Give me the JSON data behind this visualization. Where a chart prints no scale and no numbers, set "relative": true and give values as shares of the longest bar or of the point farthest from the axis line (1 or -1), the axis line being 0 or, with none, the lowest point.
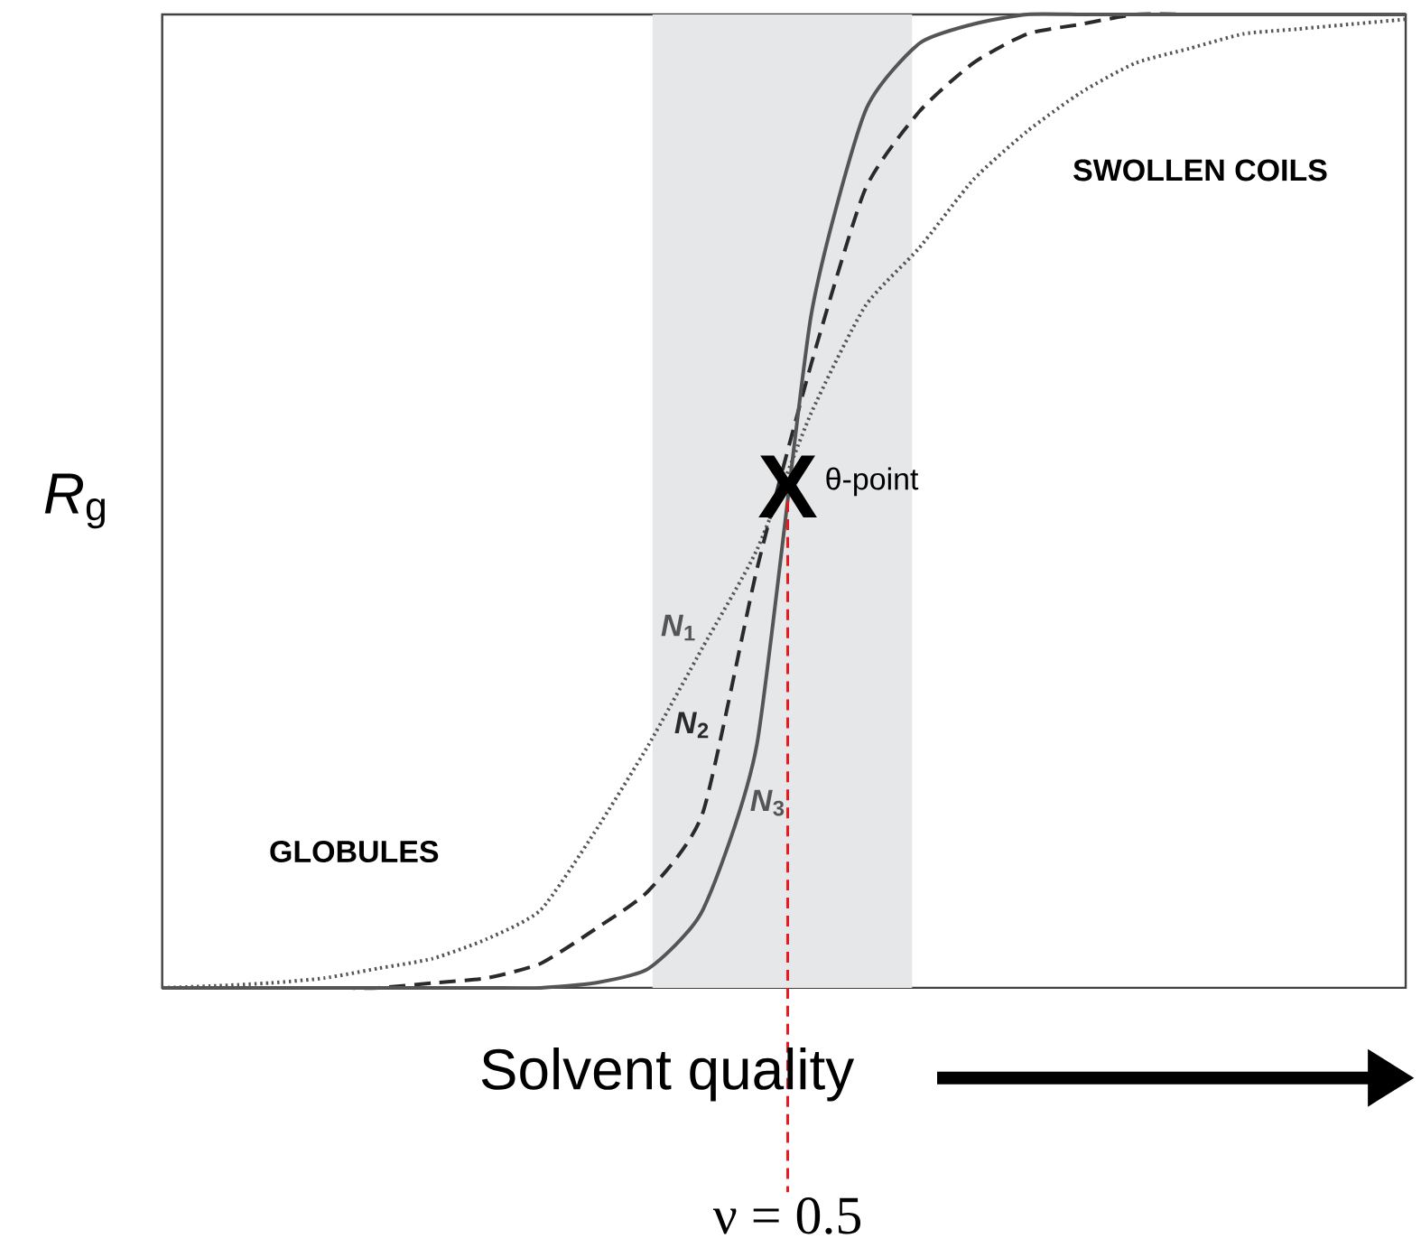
{
  "chart_data": {
    "type": "line",
    "relative": true,
    "xlabel": "Solvent quality",
    "ylabel": "*R*$_{g}$",
    "categories": [
      null,
      null,
      null,
      null,
      null,
      null,
      null,
      null,
      null,
      null,
      null,
      null,
      null,
      null,
      null,
      null,
      null,
      null,
      null,
      null,
      null,
      null,
      null,
      null
    ],
    "series": [
      {
        "name": "*N*$_{1}$",
        "color": "#555555",
        "line_style": "dotted",
        "values": [
          0,
          0.002,
          0.005,
          0.01,
          0.02,
          0.03,
          0.05,
          0.08,
          0.16,
          0.25,
          0.35,
          0.45,
          0.59,
          0.7,
          0.76,
          0.83,
          0.88,
          0.92,
          0.95,
          0.965,
          0.98,
          0.985,
          0.99,
          0.995
        ]
      },
      {
        "name": "*N*$_{2}$",
        "color": "#2a2a2a",
        "line_style": "dashed",
        "values": [
          0,
          0,
          0,
          0,
          0,
          0.005,
          0.01,
          0.025,
          0.06,
          0.1,
          0.18,
          0.43,
          0.64,
          0.82,
          0.9,
          0.95,
          0.98,
          0.99,
          1,
          1,
          1,
          1,
          1,
          1
        ]
      },
      {
        "name": "*N*$_{3}$",
        "color": "#555555",
        "line_style": "solid",
        "values": [
          0,
          0,
          0,
          0,
          0,
          0,
          0,
          0,
          0.005,
          0.02,
          0.08,
          0.25,
          0.69,
          0.9,
          0.97,
          0.99,
          1,
          1,
          1,
          1,
          1,
          1,
          1,
          1
        ]
      }
    ],
    "annotations": [
      "GLOBULES",
      "SWOLLEN COILS",
      "X",
      "θ-point",
      "ν = 0.5"
    ]
  }
}
